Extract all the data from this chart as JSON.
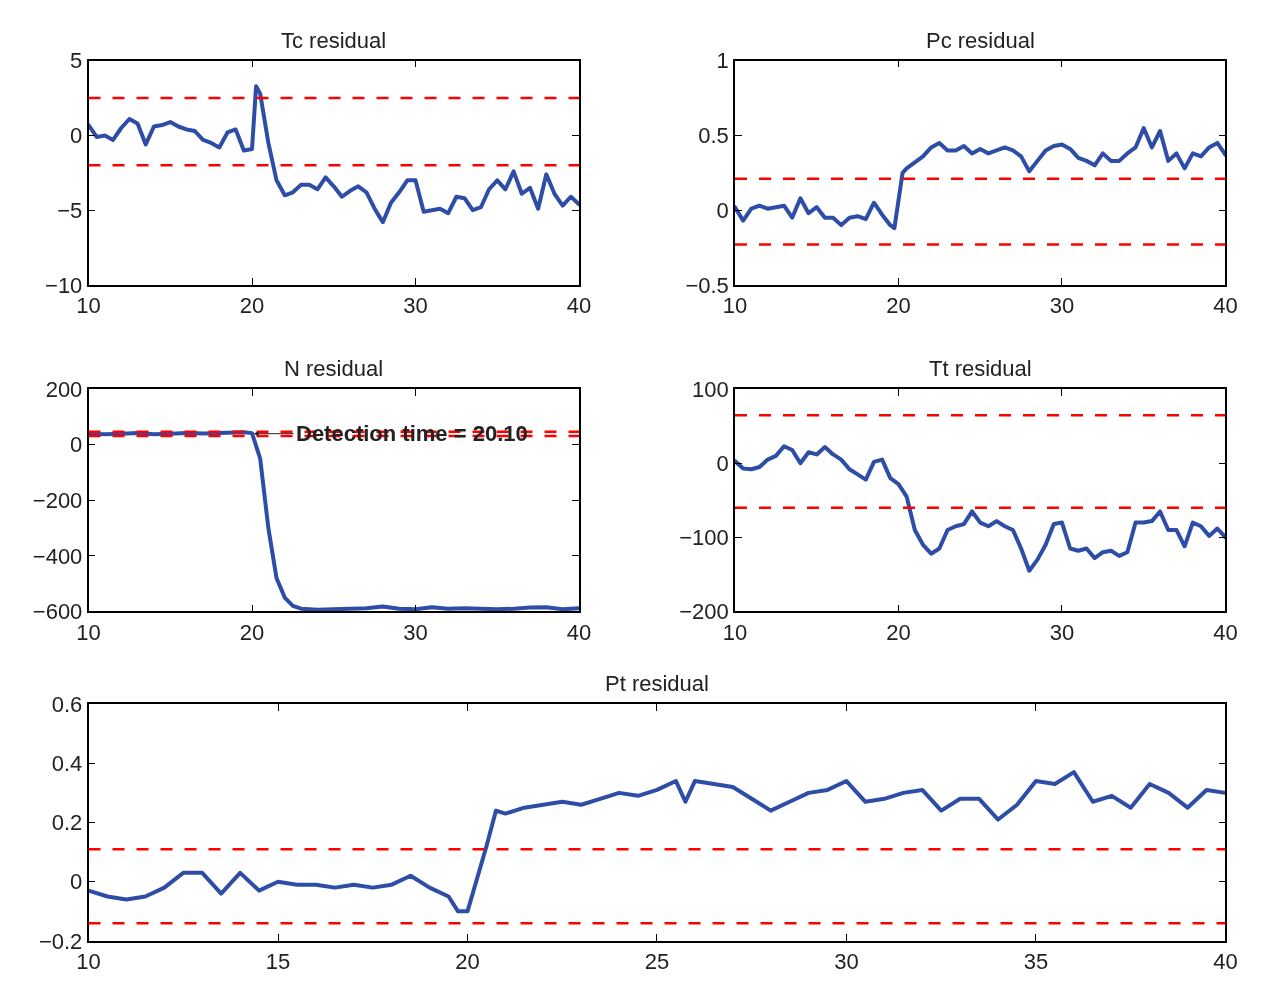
{
  "chart_data": [
    {
      "type": "line",
      "title": "Tc residual",
      "xlim": [
        10,
        40
      ],
      "xticks": [
        10,
        20,
        30,
        40
      ],
      "ylim": [
        -10,
        5
      ],
      "yticks": [
        -10,
        -5,
        0,
        5
      ],
      "marker": "none",
      "line_style": "solid",
      "x": [
        10,
        10.5,
        11,
        11.5,
        12,
        12.5,
        13,
        13.5,
        14,
        14.5,
        15,
        15.5,
        16,
        16.5,
        17,
        17.5,
        18,
        18.5,
        19,
        19.5,
        20,
        20.25,
        20.5,
        21,
        21.5,
        22,
        22.5,
        23,
        23.5,
        24,
        24.5,
        25,
        25.5,
        26,
        26.5,
        27,
        27.5,
        28,
        28.5,
        29,
        29.5,
        30,
        30.5,
        31,
        31.5,
        32,
        32.5,
        33,
        33.5,
        34,
        34.5,
        35,
        35.5,
        36,
        36.5,
        37,
        37.5,
        38,
        38.5,
        39,
        39.5,
        40
      ],
      "series": [
        {
          "color": "#2e4da6",
          "values": [
            0.7,
            -0.1,
            0,
            -0.3,
            0.5,
            1.1,
            0.8,
            -0.6,
            0.6,
            0.7,
            0.9,
            0.6,
            0.4,
            0.3,
            -0.3,
            -0.5,
            -0.8,
            0.2,
            0.4,
            -1.0,
            -0.9,
            3.3,
            2.8,
            -0.5,
            -3,
            -4,
            -3.8,
            -3.3,
            -3.3,
            -3.6,
            -2.8,
            -3.4,
            -4.1,
            -3.7,
            -3.4,
            -3.8,
            -4.9,
            -5.8,
            -4.5,
            -3.8,
            -3,
            -3,
            -5.1,
            -5,
            -4.9,
            -5.2,
            -4.1,
            -4.2,
            -5,
            -4.8,
            -3.6,
            -3,
            -3.6,
            -2.4,
            -3.9,
            -3.5,
            -4.9,
            -2.6,
            -3.9,
            -4.7,
            -4.1,
            -4.6
          ]
        }
      ],
      "ref_lines": [
        {
          "axis": "y",
          "value": 2.5,
          "color": "#ff0000",
          "line_style": "dashed"
        },
        {
          "axis": "y",
          "value": -2.0,
          "color": "#ff0000",
          "line_style": "dashed"
        }
      ]
    },
    {
      "type": "line",
      "title": "Pc residual",
      "xlim": [
        10,
        40
      ],
      "xticks": [
        10,
        20,
        30,
        40
      ],
      "ylim": [
        -0.5,
        1
      ],
      "yticks": [
        -0.5,
        0,
        0.5,
        1
      ],
      "marker": "none",
      "line_style": "solid",
      "x": [
        10,
        10.5,
        11,
        11.5,
        12,
        12.5,
        13,
        13.5,
        14,
        14.5,
        15,
        15.5,
        16,
        16.5,
        17,
        17.5,
        18,
        18.5,
        19,
        19.5,
        19.75,
        20.25,
        20.5,
        21,
        21.5,
        22,
        22.5,
        23,
        23.5,
        24,
        24.5,
        25,
        25.5,
        26,
        26.5,
        27,
        27.5,
        28,
        28.5,
        29,
        29.5,
        30,
        30.5,
        31,
        31.5,
        32,
        32.5,
        33,
        33.5,
        34,
        34.5,
        35,
        35.5,
        36,
        36.5,
        37,
        37.5,
        38,
        38.5,
        39,
        39.5,
        40
      ],
      "series": [
        {
          "color": "#2e4da6",
          "values": [
            0.02,
            -0.07,
            0.01,
            0.03,
            0.01,
            0.02,
            0.03,
            -0.05,
            0.08,
            -0.02,
            0.02,
            -0.05,
            -0.05,
            -0.1,
            -0.05,
            -0.04,
            -0.06,
            0.05,
            -0.03,
            -0.1,
            -0.12,
            0.25,
            0.28,
            0.32,
            0.36,
            0.42,
            0.45,
            0.4,
            0.4,
            0.43,
            0.38,
            0.41,
            0.38,
            0.4,
            0.42,
            0.4,
            0.36,
            0.26,
            0.33,
            0.4,
            0.43,
            0.44,
            0.41,
            0.35,
            0.33,
            0.3,
            0.38,
            0.33,
            0.33,
            0.38,
            0.42,
            0.55,
            0.42,
            0.53,
            0.33,
            0.38,
            0.28,
            0.38,
            0.36,
            0.42,
            0.45,
            0.37
          ]
        }
      ],
      "ref_lines": [
        {
          "axis": "y",
          "value": 0.21,
          "color": "#ff0000",
          "line_style": "dashed"
        },
        {
          "axis": "y",
          "value": -0.23,
          "color": "#ff0000",
          "line_style": "dashed"
        }
      ]
    },
    {
      "type": "line",
      "title": "N residual",
      "xlim": [
        10,
        40
      ],
      "xticks": [
        10,
        20,
        30,
        40
      ],
      "ylim": [
        -600,
        200
      ],
      "yticks": [
        -600,
        -400,
        -200,
        0,
        200
      ],
      "marker": "none",
      "line_style": "solid",
      "x": [
        10,
        11,
        12,
        13,
        14,
        15,
        16,
        17,
        18,
        19,
        19.5,
        20,
        20.5,
        21,
        21.5,
        22,
        22.5,
        23,
        23.5,
        24,
        25,
        26,
        27,
        28,
        29,
        30,
        31,
        32,
        33,
        34,
        35,
        36,
        37,
        38,
        39,
        40
      ],
      "series": [
        {
          "color": "#2e4da6",
          "values": [
            40,
            38,
            40,
            42,
            38,
            40,
            42,
            41,
            42,
            44,
            45,
            42,
            -50,
            -300,
            -480,
            -550,
            -580,
            -590,
            -592,
            -594,
            -592,
            -590,
            -588,
            -582,
            -590,
            -592,
            -585,
            -590,
            -588,
            -590,
            -592,
            -590,
            -586,
            -585,
            -592,
            -588
          ]
        }
      ],
      "ref_lines": [
        {
          "axis": "y",
          "value": 47,
          "color": "#ff0000",
          "line_style": "dashed"
        },
        {
          "axis": "y",
          "value": 32,
          "color": "#ff0000",
          "line_style": "dashed"
        }
      ],
      "annotations": [
        {
          "text": "Detection time = 20.10",
          "x": 20.1,
          "y": 40
        }
      ]
    },
    {
      "type": "line",
      "title": "Tt residual",
      "xlim": [
        10,
        40
      ],
      "xticks": [
        10,
        20,
        30,
        40
      ],
      "ylim": [
        -200,
        100
      ],
      "yticks": [
        -200,
        -100,
        0,
        100
      ],
      "marker": "none",
      "line_style": "solid",
      "x": [
        10,
        10.5,
        11,
        11.5,
        12,
        12.5,
        13,
        13.5,
        14,
        14.5,
        15,
        15.5,
        16,
        16.5,
        17,
        17.5,
        18,
        18.5,
        19,
        19.5,
        20,
        20.5,
        21,
        21.5,
        22,
        22.5,
        23,
        23.5,
        24,
        24.5,
        25,
        25.5,
        26,
        26.5,
        27,
        27.5,
        28,
        28.5,
        29,
        29.5,
        30,
        30.5,
        31,
        31.5,
        32,
        32.5,
        33,
        33.5,
        34,
        34.5,
        35,
        35.5,
        36,
        36.5,
        37,
        37.5,
        38,
        38.5,
        39,
        39.5,
        40
      ],
      "series": [
        {
          "color": "#2e4da6",
          "values": [
            3,
            -7,
            -8,
            -5,
            5,
            10,
            23,
            18,
            0,
            15,
            12,
            22,
            12,
            5,
            -8,
            -15,
            -22,
            2,
            5,
            -20,
            -28,
            -45,
            -90,
            -110,
            -122,
            -115,
            -90,
            -85,
            -82,
            -65,
            -80,
            -85,
            -78,
            -85,
            -90,
            -115,
            -145,
            -130,
            -110,
            -82,
            -80,
            -115,
            -118,
            -115,
            -128,
            -120,
            -118,
            -125,
            -120,
            -80,
            -80,
            -78,
            -65,
            -90,
            -90,
            -112,
            -80,
            -85,
            -98,
            -88,
            -100
          ]
        }
      ],
      "ref_lines": [
        {
          "axis": "y",
          "value": 65,
          "color": "#ff0000",
          "line_style": "dashed"
        },
        {
          "axis": "y",
          "value": -60,
          "color": "#ff0000",
          "line_style": "dashed"
        }
      ]
    },
    {
      "type": "line",
      "title": "Pt residual",
      "xlim": [
        10,
        40
      ],
      "xticks": [
        10,
        15,
        20,
        25,
        30,
        35,
        40
      ],
      "ylim": [
        -0.2,
        0.6
      ],
      "yticks": [
        -0.2,
        0,
        0.2,
        0.4,
        0.6
      ],
      "marker": "none",
      "line_style": "solid",
      "x": [
        10,
        10.5,
        11,
        11.5,
        12,
        12.5,
        13,
        13.5,
        14,
        14.5,
        15,
        15.5,
        16,
        16.5,
        17,
        17.5,
        18,
        18.5,
        19,
        19.5,
        19.75,
        20,
        20.5,
        20.75,
        21,
        21.5,
        22,
        22.5,
        23,
        23.5,
        24,
        24.5,
        25,
        25.5,
        25.75,
        26,
        26.5,
        27,
        27.5,
        28,
        28.5,
        29,
        29.5,
        30,
        30.5,
        31,
        31.5,
        32,
        32.5,
        33,
        33.5,
        34,
        34.5,
        35,
        35.5,
        36,
        36.5,
        37,
        37.5,
        38,
        38.5,
        39,
        39.5,
        40
      ],
      "series": [
        {
          "color": "#2e4da6",
          "values": [
            -0.03,
            -0.05,
            -0.06,
            -0.05,
            -0.02,
            0.03,
            0.03,
            -0.04,
            0.03,
            -0.03,
            0.0,
            -0.01,
            -0.01,
            -0.02,
            -0.01,
            -0.02,
            -0.01,
            0.02,
            -0.02,
            -0.05,
            -0.1,
            -0.1,
            0.12,
            0.24,
            0.23,
            0.25,
            0.26,
            0.27,
            0.26,
            0.28,
            0.3,
            0.29,
            0.31,
            0.34,
            0.27,
            0.34,
            0.33,
            0.32,
            0.28,
            0.24,
            0.27,
            0.3,
            0.31,
            0.34,
            0.27,
            0.28,
            0.3,
            0.31,
            0.24,
            0.28,
            0.28,
            0.21,
            0.26,
            0.34,
            0.33,
            0.37,
            0.27,
            0.29,
            0.25,
            0.33,
            0.3,
            0.25,
            0.31,
            0.3
          ]
        }
      ],
      "ref_lines": [
        {
          "axis": "y",
          "value": 0.11,
          "color": "#ff0000",
          "line_style": "dashed"
        },
        {
          "axis": "y",
          "value": -0.14,
          "color": "#ff0000",
          "line_style": "dashed"
        }
      ]
    }
  ]
}
